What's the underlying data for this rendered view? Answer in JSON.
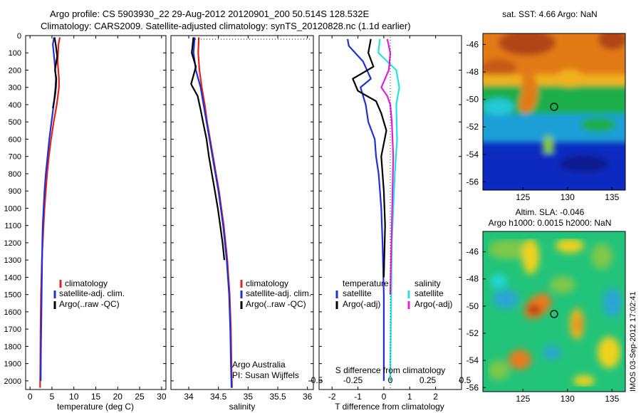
{
  "title_line1": "Argo profile: CS 5903930_22 29-Aug-2012 20120901_200 50.514S 128.532E",
  "title_line2": "Climatology: CARS2009. Satellite-adjusted climatology: synTS_20120828.nc (1.1d earlier)",
  "footer": "IMOS 03-Sep-2012 17:02:41",
  "colors": {
    "climatology": "#e8201b",
    "satellite": "#1f2fd6",
    "argo": "#000000",
    "cyan": "#22e2e2",
    "magenta": "#e020d6"
  },
  "chart_data": [
    {
      "type": "line",
      "xlabel": "temperature (deg C)",
      "ylim": [
        2050,
        0
      ],
      "xlim": [
        -1,
        31
      ],
      "xticks": [
        "0",
        "5",
        "10",
        "15",
        "20",
        "25",
        "30"
      ],
      "yticks": [
        "0",
        "100",
        "200",
        "300",
        "400",
        "500",
        "600",
        "700",
        "800",
        "900",
        "1000",
        "1100",
        "1200",
        "1300",
        "1400",
        "1500",
        "1600",
        "1700",
        "1800",
        "1900",
        "2000"
      ],
      "legend": [
        "climatology",
        "satellite-adj. clim.",
        "Argo(..raw -QC)"
      ],
      "series": [
        {
          "name": "climatology",
          "x": [
            6.8,
            6.5,
            6.3,
            6.6,
            6.6,
            6.1,
            5.4,
            4.8,
            4.3,
            3.9,
            3.6,
            3.3,
            3.1,
            2.9,
            2.7,
            2.6,
            2.5,
            2.4,
            2.35,
            2.3
          ],
          "y": [
            10,
            50,
            150,
            250,
            300,
            400,
            500,
            600,
            700,
            800,
            900,
            1000,
            1100,
            1200,
            1300,
            1400,
            1500,
            1700,
            1900,
            2040
          ]
        },
        {
          "name": "satellite-adj. clim.",
          "x": [
            5.5,
            5.2,
            5.6,
            5.9,
            5.8,
            5.4,
            4.9,
            4.4,
            4.0,
            3.6,
            3.3,
            3.1,
            2.9,
            2.8,
            2.7,
            2.6,
            2.5,
            2.45
          ],
          "y": [
            10,
            50,
            150,
            250,
            300,
            400,
            500,
            600,
            700,
            800,
            900,
            1000,
            1100,
            1200,
            1400,
            1600,
            1800,
            2000
          ]
        },
        {
          "name": "Argo(..raw -QC)",
          "x": [
            5.6,
            5.9,
            6.2,
            5.7,
            6.0,
            5.9,
            5.7,
            5.2
          ],
          "y": [
            10,
            60,
            120,
            200,
            250,
            300,
            350,
            420
          ]
        }
      ]
    },
    {
      "type": "line",
      "xlabel": "salinity",
      "ylim": [
        2050,
        0
      ],
      "xlim": [
        33.7,
        36.1
      ],
      "xticks": [
        "34",
        "34.5",
        "35",
        "35.5",
        "36"
      ],
      "legend": [
        "climatology",
        "satellite-adj. clim.",
        "Argo(..raw -QC)"
      ],
      "annotations": [
        "Argo Australia",
        "PI: Susan Wijffels"
      ],
      "series": [
        {
          "name": "climatology",
          "x": [
            34.17,
            34.16,
            34.18,
            34.22,
            34.27,
            34.31,
            34.36,
            34.41,
            34.46,
            34.51,
            34.55,
            34.59,
            34.62,
            34.65,
            34.67,
            34.69,
            34.71,
            34.72,
            34.73
          ],
          "y": [
            10,
            100,
            200,
            300,
            400,
            500,
            600,
            700,
            800,
            900,
            1000,
            1100,
            1200,
            1300,
            1400,
            1500,
            1700,
            1900,
            2040
          ]
        },
        {
          "name": "satellite-adj. clim.",
          "x": [
            34.1,
            34.08,
            34.12,
            34.2,
            34.25,
            34.3,
            34.35,
            34.4,
            34.45,
            34.5,
            34.54,
            34.58,
            34.61,
            34.64,
            34.66,
            34.68,
            34.7,
            34.71,
            34.72
          ],
          "y": [
            10,
            100,
            200,
            300,
            400,
            500,
            600,
            700,
            800,
            900,
            1000,
            1100,
            1200,
            1300,
            1400,
            1500,
            1700,
            1900,
            2040
          ]
        },
        {
          "name": "Argo(..raw -QC)",
          "x": [
            34.08,
            34.05,
            34.12,
            34.08,
            34.04,
            34.07,
            34.15,
            34.2,
            34.24,
            34.3,
            34.34,
            34.39,
            34.44,
            34.49,
            34.53,
            34.57,
            34.6
          ],
          "y": [
            10,
            100,
            180,
            230,
            280,
            300,
            350,
            430,
            500,
            600,
            700,
            800,
            900,
            1000,
            1100,
            1200,
            1300
          ]
        }
      ]
    },
    {
      "type": "line",
      "xlabel": "T difference from climatology",
      "title": "S difference from climatology",
      "ylim": [
        2050,
        0
      ],
      "xlim": [
        -2.5,
        3.0
      ],
      "xticks": [
        "-2",
        "-1",
        "0",
        "1",
        "2"
      ],
      "top_xticks": [
        "-0.5",
        "-0.25",
        "0",
        "0.25",
        "0.5"
      ],
      "legend_left": {
        "header": "temperature",
        "items": [
          "satellite",
          "Argo(-adj)"
        ]
      },
      "legend_right": {
        "header": "salinity",
        "items": [
          "satellite",
          "Argo(-adj)"
        ]
      },
      "series": [
        {
          "name": "T satellite",
          "x": [
            -1.4,
            -1.35,
            -0.8,
            -0.5,
            -0.9,
            -0.7,
            -0.6,
            -0.35,
            -0.3,
            -0.2,
            -0.15,
            -0.1,
            -0.05,
            0,
            0
          ],
          "y": [
            20,
            60,
            150,
            250,
            300,
            400,
            500,
            600,
            700,
            800,
            900,
            1000,
            1200,
            1500,
            2000
          ]
        },
        {
          "name": "T Argo(-adj)",
          "x": [
            -0.5,
            -0.6,
            -0.4,
            -1.2,
            -1.0,
            -0.3,
            -0.1,
            0.1,
            -0.1,
            0,
            0.05,
            0
          ],
          "y": [
            20,
            100,
            180,
            250,
            320,
            380,
            450,
            550,
            700,
            900,
            1100,
            1400
          ]
        },
        {
          "name": "S satellite",
          "x": [
            -0.07,
            -0.08,
            0.04,
            0.06,
            0.04,
            0.045,
            0.03,
            0.02,
            0.01,
            0.005,
            0
          ],
          "y": [
            20,
            100,
            200,
            300,
            400,
            600,
            800,
            1000,
            1200,
            1600,
            2000
          ]
        },
        {
          "name": "S Argo(-adj)",
          "x": [
            -0.02,
            0.0,
            -0.01,
            -0.06,
            -0.02,
            0.0,
            0.01,
            0.02,
            0.015,
            0.01,
            0.005,
            0
          ],
          "y": [
            20,
            100,
            200,
            300,
            350,
            400,
            500,
            700,
            900,
            1100,
            1300,
            1500
          ]
        }
      ]
    },
    {
      "type": "heatmap",
      "title": "sat. SST: 4.66  Argo: NaN",
      "xticks": [
        "125",
        "130",
        "135"
      ],
      "yticks": [
        "-46",
        "-48",
        "-50",
        "-52",
        "-54",
        "-56"
      ]
    },
    {
      "type": "heatmap",
      "title_line1": "Altim. SLA: -0.046",
      "title_line2": "Argo h1000: 0.0015  h2000: NaN",
      "xticks": [
        "125",
        "130",
        "135"
      ],
      "yticks": [
        "-46",
        "-48",
        "-50",
        "-52",
        "-54",
        "-56"
      ]
    }
  ]
}
